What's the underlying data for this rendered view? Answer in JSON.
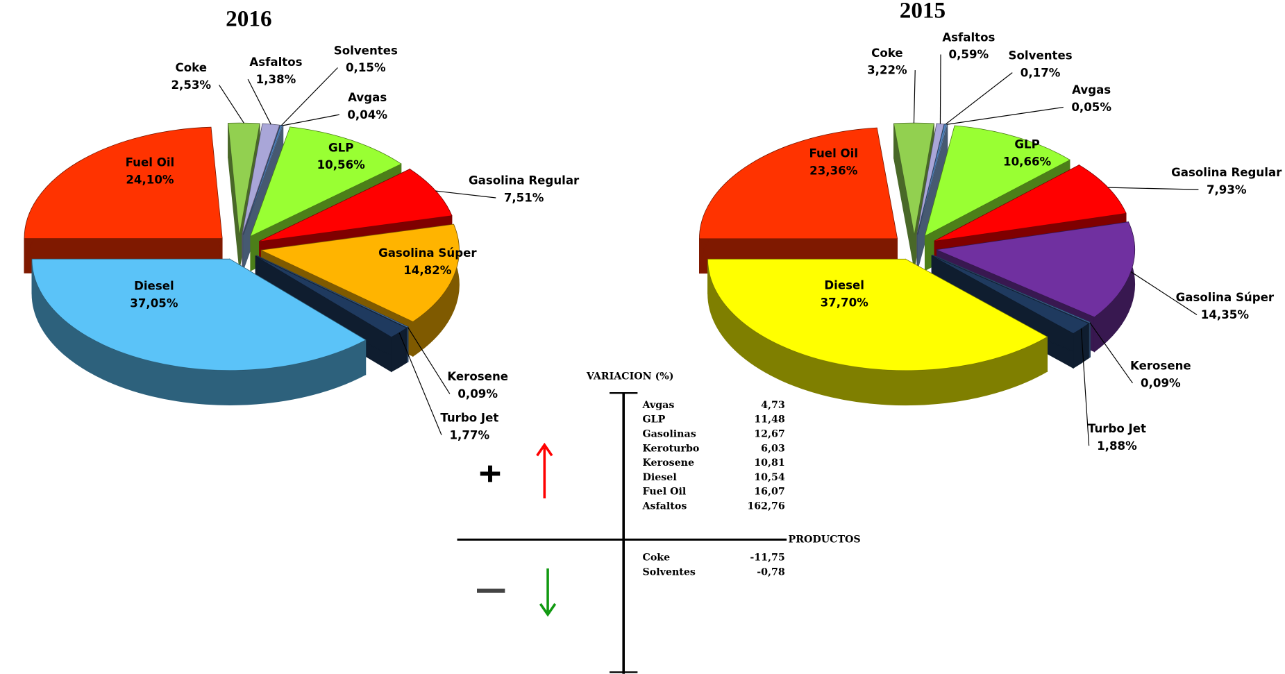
{
  "chart_data": [
    {
      "type": "pie",
      "title": "2016",
      "categories": [
        "Fuel Oil",
        "Coke",
        "Asfaltos",
        "Solventes",
        "Avgas",
        "GLP",
        "Gasolina Regular",
        "Gasolina Súper",
        "Kerosene",
        "Turbo Jet",
        "Diesel"
      ],
      "values": [
        24.1,
        2.53,
        1.38,
        0.15,
        0.04,
        10.56,
        7.51,
        14.82,
        0.09,
        1.77,
        37.05
      ],
      "value_labels": [
        "24,10%",
        "2,53%",
        "1,38%",
        "0,15%",
        "0,04%",
        "10,56%",
        "7,51%",
        "14,82%",
        "0,09%",
        "1,77%",
        "37,05%"
      ],
      "colors": [
        "#ff3300",
        "#92d050",
        "#a9a6d8",
        "#4f81bd",
        "#8db3e2",
        "#99ff33",
        "#ff0000",
        "#ffb400",
        "#4f81bd",
        "#1f3a5f",
        "#5bc3f8"
      ]
    },
    {
      "type": "pie",
      "title": "2015",
      "categories": [
        "Fuel Oil",
        "Coke",
        "Asfaltos",
        "Solventes",
        "Avgas",
        "GLP",
        "Gasolina Regular",
        "Gasolina Súper",
        "Kerosene",
        "Turbo Jet",
        "Diesel"
      ],
      "values": [
        23.36,
        3.22,
        0.59,
        0.17,
        0.05,
        10.66,
        7.93,
        14.35,
        0.09,
        1.88,
        37.7
      ],
      "value_labels": [
        "23,36%",
        "3,22%",
        "0,59%",
        "0,17%",
        "0,05%",
        "10,66%",
        "7,93%",
        "14,35%",
        "0,09%",
        "1,88%",
        "37,70%"
      ],
      "colors": [
        "#ff3300",
        "#92d050",
        "#a9a6d8",
        "#4f81bd",
        "#8db3e2",
        "#99ff33",
        "#ff0000",
        "#7030a0",
        "#4f81bd",
        "#1f3a5f",
        "#ffff00"
      ]
    }
  ],
  "variation": {
    "title": "VARIACION    (%)",
    "axis_label": "PRODUCTOS",
    "positive": [
      [
        "Avgas",
        "4,73"
      ],
      [
        "GLP",
        "11,48"
      ],
      [
        "Gasolinas",
        "12,67"
      ],
      [
        "Keroturbo",
        "6,03"
      ],
      [
        "Kerosene",
        "10,81"
      ],
      [
        "Diesel",
        "10,54"
      ],
      [
        "Fuel Oil",
        "16,07"
      ],
      [
        "Asfaltos",
        "162,76"
      ]
    ],
    "negative": [
      [
        "Coke",
        "-11,75"
      ],
      [
        "Solventes",
        "-0,78"
      ]
    ]
  }
}
